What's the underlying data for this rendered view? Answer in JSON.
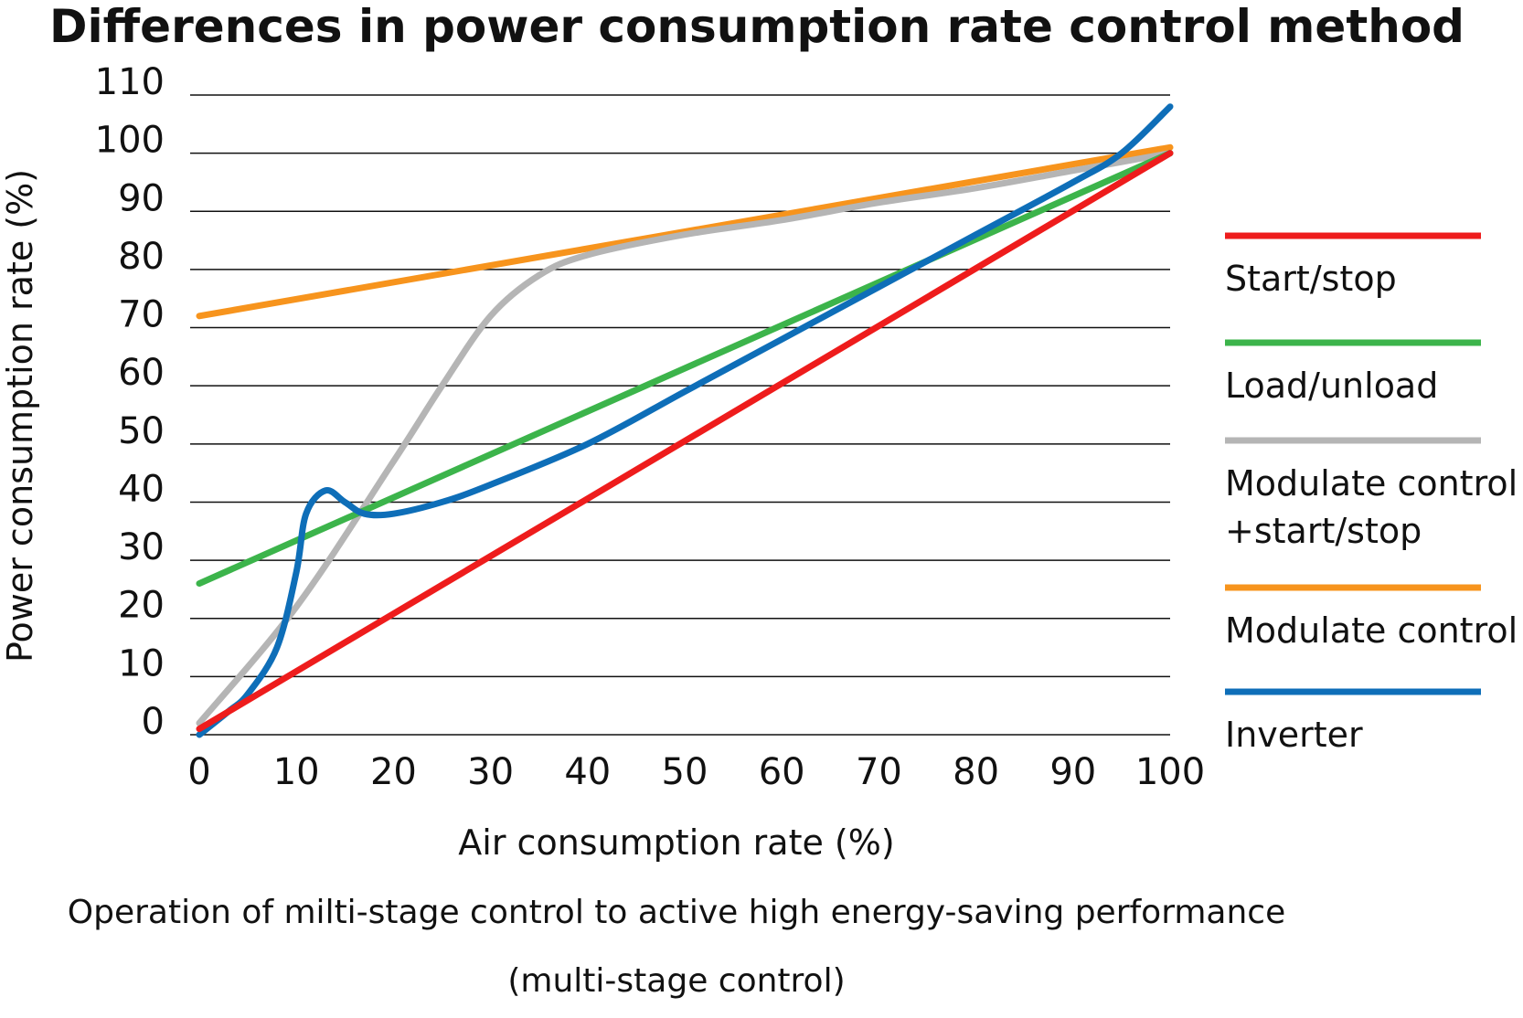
{
  "chart_data": {
    "type": "line",
    "title": "Differences in power consumption rate control method",
    "xlabel": "Air consumption rate (%)",
    "ylabel": "Power consumption rate (%)",
    "xlim": [
      0,
      100
    ],
    "ylim": [
      0,
      110
    ],
    "x_ticks": [
      "0",
      "10",
      "20",
      "30",
      "40",
      "50",
      "60",
      "70",
      "80",
      "90",
      "100"
    ],
    "y_ticks": [
      "0",
      "10",
      "20",
      "30",
      "40",
      "50",
      "60",
      "70",
      "80",
      "90",
      "100",
      "110"
    ],
    "grid": true,
    "legend_position": "right",
    "series": [
      {
        "name": "Start/stop",
        "color": "#ee1c1c",
        "x": [
          0,
          100
        ],
        "y": [
          1,
          100
        ]
      },
      {
        "name": "Load/unload",
        "color": "#3cb44b",
        "x": [
          0,
          100
        ],
        "y": [
          26,
          100
        ]
      },
      {
        "name": "Modulate control\n+start/stop",
        "color": "#b5b5b5",
        "x": [
          0,
          10,
          20,
          25,
          30,
          35,
          40,
          50,
          60,
          70,
          80,
          90,
          100
        ],
        "y": [
          2,
          22,
          47,
          60,
          72,
          79,
          82.5,
          86,
          88.5,
          91.5,
          94,
          97,
          100
        ]
      },
      {
        "name": "Modulate control",
        "color": "#f7941d",
        "x": [
          0,
          100
        ],
        "y": [
          72,
          101
        ]
      },
      {
        "name": "Inverter",
        "color": "#0e6eb8",
        "x": [
          0,
          3,
          5,
          8,
          10,
          11,
          13,
          15,
          17,
          20,
          25,
          30,
          40,
          50,
          60,
          70,
          80,
          90,
          95,
          100
        ],
        "y": [
          0,
          4,
          7,
          15,
          28,
          38,
          42,
          40,
          38,
          38,
          40,
          43,
          50,
          59,
          68,
          77,
          86,
          95,
          100,
          108
        ]
      }
    ],
    "caption_lines": [
      "Operation of milti-stage control to active high energy-saving performance",
      "(multi-stage control)"
    ]
  }
}
